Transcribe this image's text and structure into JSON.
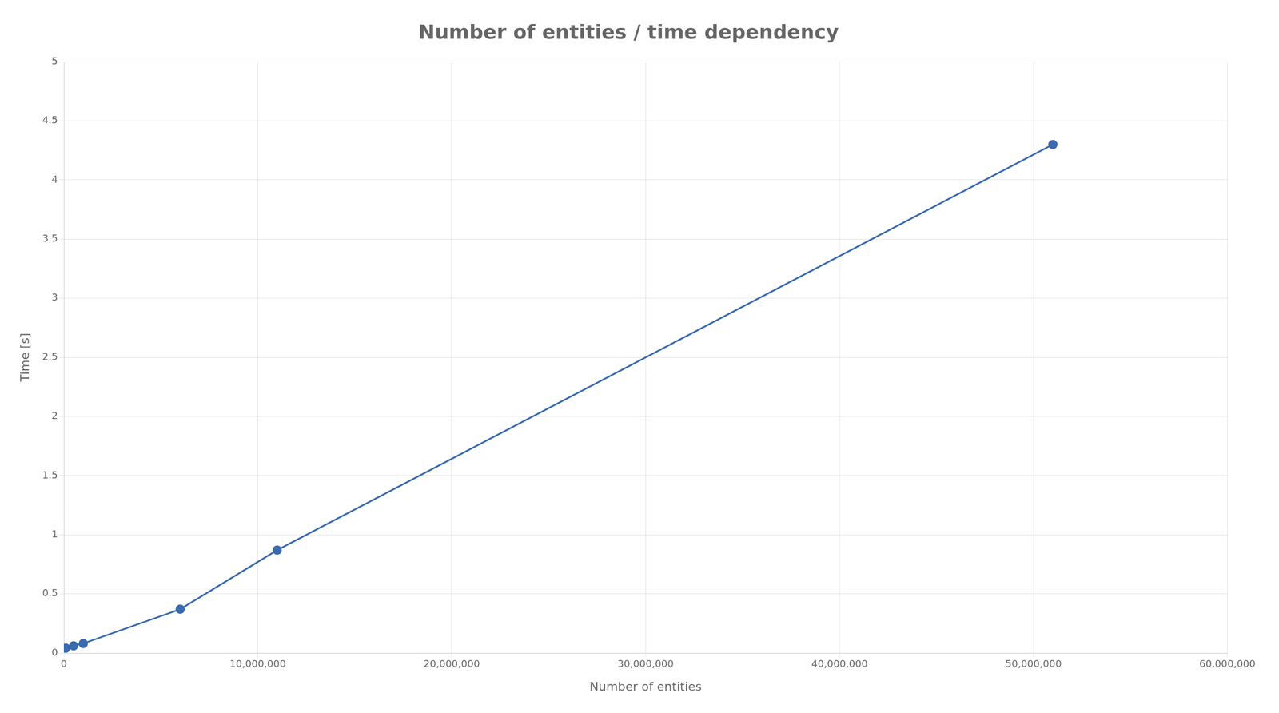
{
  "chart_data": {
    "type": "line",
    "title": "Number of entities / time dependency",
    "xlabel": "Number of entities",
    "ylabel": "Time [s]",
    "x": [
      100000,
      500000,
      1000000,
      6000000,
      11000000,
      51000000
    ],
    "values": [
      0.04,
      0.06,
      0.08,
      0.37,
      0.87,
      4.3
    ],
    "color": "#3a6ab0",
    "marker": "o",
    "xlim": [
      0,
      60000000
    ],
    "ylim": [
      0,
      5
    ],
    "xticks": [
      {
        "value": 0,
        "label": "0"
      },
      {
        "value": 10000000,
        "label": "10,000,000"
      },
      {
        "value": 20000000,
        "label": "20,000,000"
      },
      {
        "value": 30000000,
        "label": "30,000,000"
      },
      {
        "value": 40000000,
        "label": "40,000,000"
      },
      {
        "value": 50000000,
        "label": "50,000,000"
      },
      {
        "value": 60000000,
        "label": "60,000,000"
      }
    ],
    "yticks": [
      0,
      0.5,
      1,
      1.5,
      2,
      2.5,
      3,
      3.5,
      4,
      4.5,
      5
    ],
    "grid": true
  }
}
